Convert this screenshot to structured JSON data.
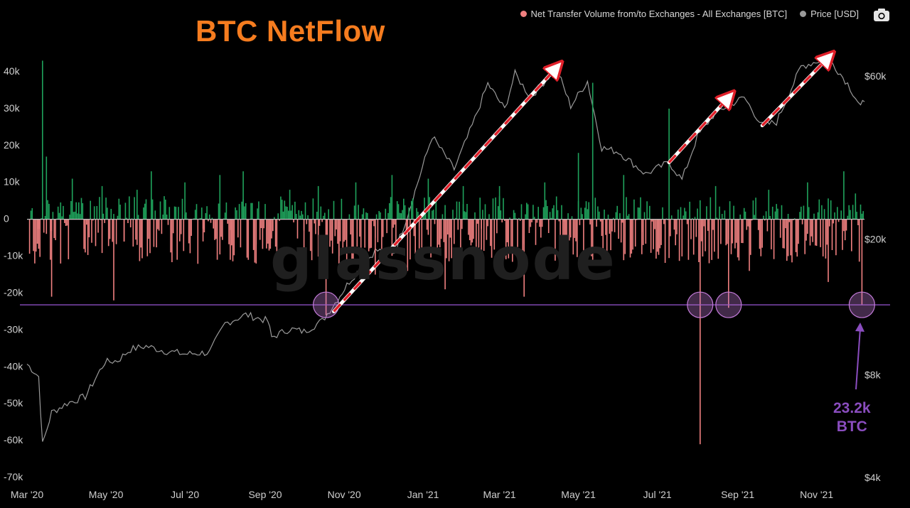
{
  "title": "BTC NetFlow",
  "watermark": "glassnode",
  "legend": [
    {
      "label": "Net Transfer Volume from/to Exchanges - All Exchanges [BTC]",
      "color": "#f08080"
    },
    {
      "label": "Price [USD]",
      "color": "#9a9a9a"
    }
  ],
  "toolbar": {
    "camera_icon": "camera-icon"
  },
  "annotation": {
    "line1": "23.2k",
    "line2": "BTC",
    "color": "#8a4dbf"
  },
  "colors": {
    "positive": "#1fa35c",
    "negative": "#f08080",
    "price": "#9a9a9a",
    "threshold": "#8a4dbf",
    "arrow": "#e0202a"
  },
  "chart_data": {
    "type": "bar",
    "x_ticks": [
      "Mar '20",
      "May '20",
      "Jul '20",
      "Sep '20",
      "Nov '20",
      "Jan '21",
      "Mar '21",
      "May '21",
      "Jul '21",
      "Sep '21",
      "Nov '21"
    ],
    "y_left_ticks": [
      "40k",
      "30k",
      "20k",
      "10k",
      "0",
      "-10k",
      "-20k",
      "-30k",
      "-40k",
      "-50k",
      "-60k",
      "-70k"
    ],
    "y_right_ticks": [
      "$60k",
      "$20k",
      "$8k",
      "$4k"
    ],
    "ylim_left": [
      -70000,
      45000
    ],
    "ylim_right": [
      4000,
      70000
    ],
    "right_axis_scale": "log",
    "x_range": [
      "2020-03-01",
      "2021-12-08"
    ],
    "threshold_btc": -23200,
    "series": [
      {
        "name": "Net Transfer Volume from/to Exchanges - All Exchanges [BTC]",
        "axis": "left",
        "points": [
          [
            "2020-03-05",
            3000
          ],
          [
            "2020-03-10",
            -8000
          ],
          [
            "2020-03-13",
            43000
          ],
          [
            "2020-03-16",
            17000
          ],
          [
            "2020-03-20",
            -21000
          ],
          [
            "2020-03-27",
            -12000
          ],
          [
            "2020-04-05",
            11000
          ],
          [
            "2020-04-15",
            -9000
          ],
          [
            "2020-04-28",
            9000
          ],
          [
            "2020-05-07",
            -22000
          ],
          [
            "2020-05-15",
            -6000
          ],
          [
            "2020-05-25",
            8000
          ],
          [
            "2020-06-05",
            13000
          ],
          [
            "2020-06-20",
            -9000
          ],
          [
            "2020-07-01",
            10000
          ],
          [
            "2020-07-15",
            -6000
          ],
          [
            "2020-07-28",
            12000
          ],
          [
            "2020-08-05",
            -11000
          ],
          [
            "2020-08-15",
            13000
          ],
          [
            "2020-08-25",
            -12000
          ],
          [
            "2020-09-05",
            -8000
          ],
          [
            "2020-09-20",
            8000
          ],
          [
            "2020-10-01",
            -9000
          ],
          [
            "2020-10-12",
            9000
          ],
          [
            "2020-10-18",
            -26000
          ],
          [
            "2020-10-28",
            -12000
          ],
          [
            "2020-11-10",
            10000
          ],
          [
            "2020-11-25",
            -15000
          ],
          [
            "2020-12-08",
            12000
          ],
          [
            "2020-12-20",
            -14000
          ],
          [
            "2021-01-05",
            11000
          ],
          [
            "2021-01-18",
            -19000
          ],
          [
            "2021-02-01",
            9000
          ],
          [
            "2021-02-15",
            -14000
          ],
          [
            "2021-03-01",
            9000
          ],
          [
            "2021-03-20",
            -21000
          ],
          [
            "2021-04-05",
            10000
          ],
          [
            "2021-04-20",
            -10000
          ],
          [
            "2021-05-01",
            18000
          ],
          [
            "2021-05-12",
            37000
          ],
          [
            "2021-05-20",
            -11000
          ],
          [
            "2021-06-05",
            12000
          ],
          [
            "2021-06-20",
            -7000
          ],
          [
            "2021-07-10",
            30000
          ],
          [
            "2021-07-25",
            -11000
          ],
          [
            "2021-08-03",
            -61000
          ],
          [
            "2021-08-15",
            9000
          ],
          [
            "2021-08-25",
            -24000
          ],
          [
            "2021-09-10",
            -14000
          ],
          [
            "2021-09-25",
            8000
          ],
          [
            "2021-10-10",
            -10000
          ],
          [
            "2021-10-25",
            10000
          ],
          [
            "2021-11-10",
            -17000
          ],
          [
            "2021-11-22",
            13000
          ],
          [
            "2021-12-01",
            7000
          ],
          [
            "2021-12-06",
            -23200
          ]
        ]
      },
      {
        "name": "Price [USD]",
        "axis": "right",
        "points": [
          [
            "2020-03-01",
            8600
          ],
          [
            "2020-03-10",
            7900
          ],
          [
            "2020-03-13",
            5000
          ],
          [
            "2020-03-20",
            6200
          ],
          [
            "2020-04-01",
            6600
          ],
          [
            "2020-04-15",
            6900
          ],
          [
            "2020-04-30",
            8700
          ],
          [
            "2020-05-10",
            8800
          ],
          [
            "2020-05-20",
            9500
          ],
          [
            "2020-06-01",
            9700
          ],
          [
            "2020-06-15",
            9400
          ],
          [
            "2020-07-01",
            9200
          ],
          [
            "2020-07-20",
            9300
          ],
          [
            "2020-08-01",
            11300
          ],
          [
            "2020-08-17",
            12000
          ],
          [
            "2020-09-03",
            11500
          ],
          [
            "2020-09-06",
            10300
          ],
          [
            "2020-09-20",
            10900
          ],
          [
            "2020-10-01",
            10700
          ],
          [
            "2020-10-15",
            11500
          ],
          [
            "2020-10-25",
            13000
          ],
          [
            "2020-11-05",
            15000
          ],
          [
            "2020-11-25",
            18500
          ],
          [
            "2020-12-10",
            18300
          ],
          [
            "2020-12-20",
            23500
          ],
          [
            "2021-01-08",
            40000
          ],
          [
            "2021-01-25",
            32000
          ],
          [
            "2021-02-08",
            43000
          ],
          [
            "2021-02-20",
            57000
          ],
          [
            "2021-03-05",
            48000
          ],
          [
            "2021-03-13",
            61000
          ],
          [
            "2021-03-25",
            52000
          ],
          [
            "2021-04-14",
            63500
          ],
          [
            "2021-04-25",
            49000
          ],
          [
            "2021-05-08",
            58000
          ],
          [
            "2021-05-19",
            37000
          ],
          [
            "2021-06-01",
            36000
          ],
          [
            "2021-06-22",
            31000
          ],
          [
            "2021-07-10",
            33500
          ],
          [
            "2021-07-20",
            29800
          ],
          [
            "2021-08-01",
            40000
          ],
          [
            "2021-08-15",
            47000
          ],
          [
            "2021-09-06",
            52000
          ],
          [
            "2021-09-20",
            43000
          ],
          [
            "2021-10-01",
            44000
          ],
          [
            "2021-10-20",
            64000
          ],
          [
            "2021-11-10",
            68000
          ],
          [
            "2021-11-25",
            57000
          ],
          [
            "2021-12-05",
            49000
          ],
          [
            "2021-12-08",
            50500
          ]
        ]
      }
    ]
  }
}
